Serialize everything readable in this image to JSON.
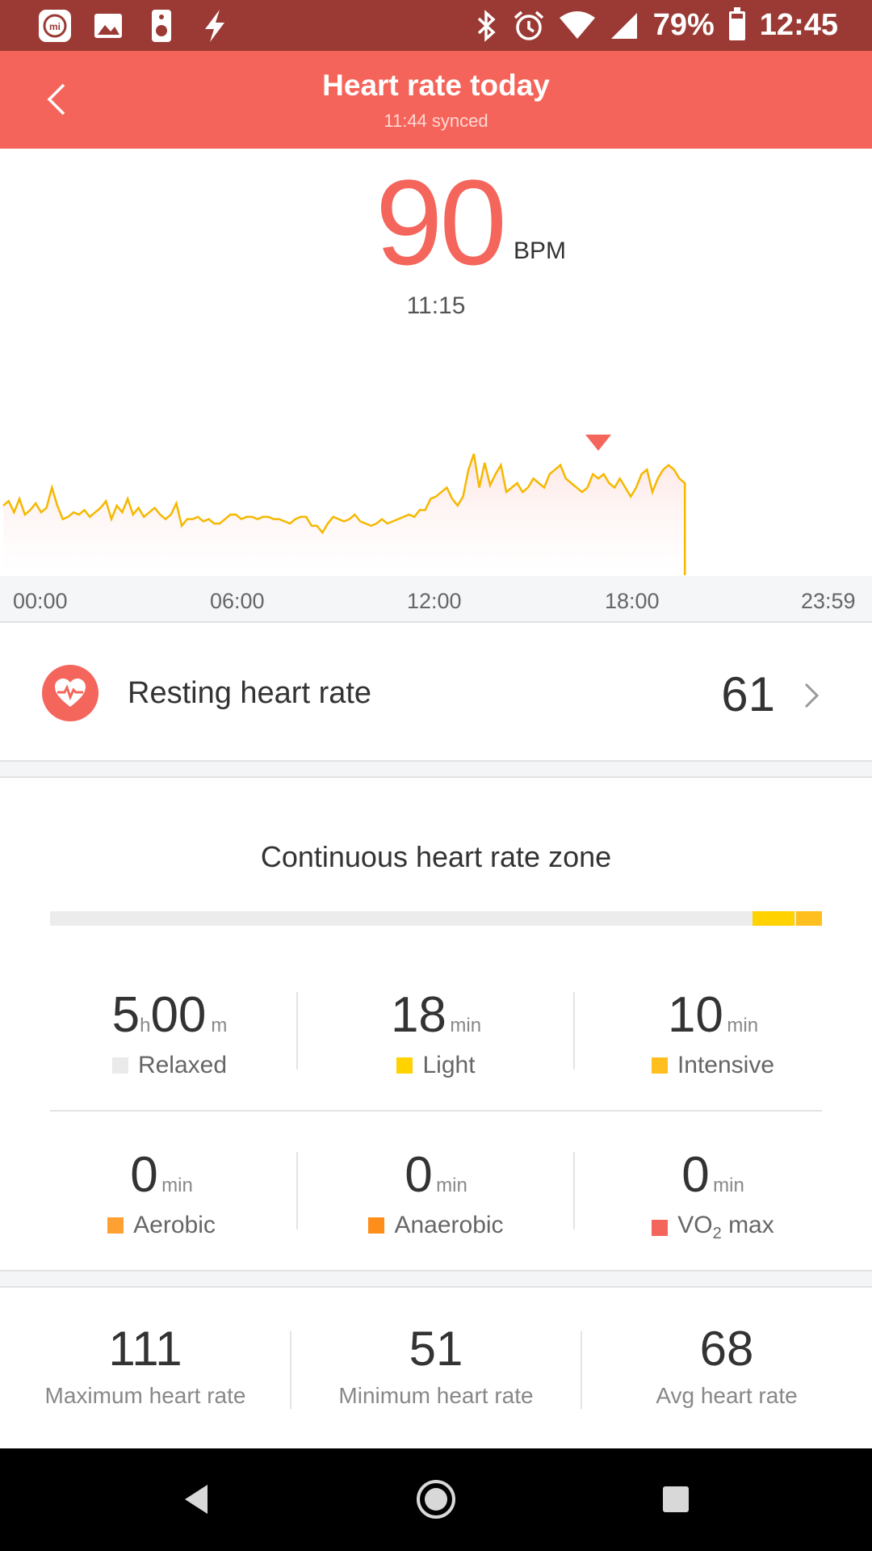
{
  "status_bar": {
    "battery": "79%",
    "battery_level": 0.79,
    "time": "12:45",
    "icons": [
      "mi-fit-icon",
      "image-icon",
      "speaker-icon",
      "flash-icon",
      "bluetooth-icon",
      "alarm-icon",
      "wifi-icon",
      "signal-icon",
      "battery-icon"
    ]
  },
  "header": {
    "title": "Heart rate today",
    "subtitle": "11:44 synced"
  },
  "current": {
    "value": "90",
    "unit": "BPM",
    "time": "11:15"
  },
  "chart_data": {
    "type": "line",
    "series": [
      {
        "values": [
          [
            0.0,
            72
          ],
          [
            0.15,
            74
          ],
          [
            0.3,
            69
          ],
          [
            0.45,
            75
          ],
          [
            0.6,
            68
          ],
          [
            0.75,
            70
          ],
          [
            0.9,
            73
          ],
          [
            1.05,
            69
          ],
          [
            1.2,
            71
          ],
          [
            1.35,
            80
          ],
          [
            1.5,
            72
          ],
          [
            1.65,
            66
          ],
          [
            1.8,
            67
          ],
          [
            1.95,
            69
          ],
          [
            2.1,
            68
          ],
          [
            2.25,
            70
          ],
          [
            2.4,
            67
          ],
          [
            2.55,
            69
          ],
          [
            2.7,
            71
          ],
          [
            2.85,
            74
          ],
          [
            3.0,
            66
          ],
          [
            3.15,
            72
          ],
          [
            3.3,
            69
          ],
          [
            3.45,
            75
          ],
          [
            3.6,
            68
          ],
          [
            3.75,
            71
          ],
          [
            3.9,
            67
          ],
          [
            4.05,
            69
          ],
          [
            4.2,
            71
          ],
          [
            4.35,
            68
          ],
          [
            4.5,
            66
          ],
          [
            4.65,
            68
          ],
          [
            4.8,
            73
          ],
          [
            4.95,
            63
          ],
          [
            5.1,
            66
          ],
          [
            5.25,
            66
          ],
          [
            5.4,
            67
          ],
          [
            5.55,
            65
          ],
          [
            5.7,
            66
          ],
          [
            5.85,
            64
          ],
          [
            6.0,
            64
          ],
          [
            6.15,
            66
          ],
          [
            6.3,
            68
          ],
          [
            6.45,
            68
          ],
          [
            6.6,
            66
          ],
          [
            6.75,
            67
          ],
          [
            6.9,
            67
          ],
          [
            7.05,
            66
          ],
          [
            7.2,
            67
          ],
          [
            7.35,
            67
          ],
          [
            7.5,
            66
          ],
          [
            7.65,
            66
          ],
          [
            7.8,
            65
          ],
          [
            7.95,
            64
          ],
          [
            8.1,
            66
          ],
          [
            8.25,
            67
          ],
          [
            8.4,
            67
          ],
          [
            8.55,
            63
          ],
          [
            8.7,
            63
          ],
          [
            8.85,
            60
          ],
          [
            9.0,
            64
          ],
          [
            9.15,
            67
          ],
          [
            9.3,
            66
          ],
          [
            9.45,
            65
          ],
          [
            9.6,
            66
          ],
          [
            9.75,
            68
          ],
          [
            9.9,
            65
          ],
          [
            10.05,
            64
          ],
          [
            10.2,
            63
          ],
          [
            10.35,
            64
          ],
          [
            10.5,
            66
          ],
          [
            10.65,
            64
          ],
          [
            10.8,
            65
          ],
          [
            10.95,
            66
          ],
          [
            11.1,
            67
          ],
          [
            11.25,
            68
          ],
          [
            11.4,
            67
          ],
          [
            11.55,
            70
          ],
          [
            11.7,
            70
          ],
          [
            11.85,
            75
          ],
          [
            12.0,
            76
          ],
          [
            12.15,
            78
          ],
          [
            12.3,
            80
          ],
          [
            12.45,
            75
          ],
          [
            12.6,
            72
          ],
          [
            12.75,
            76
          ],
          [
            12.9,
            88
          ],
          [
            13.05,
            95
          ],
          [
            13.2,
            80
          ],
          [
            13.35,
            91
          ],
          [
            13.5,
            81
          ],
          [
            13.65,
            86
          ],
          [
            13.8,
            90
          ],
          [
            13.95,
            78
          ],
          [
            14.1,
            80
          ],
          [
            14.25,
            82
          ],
          [
            14.4,
            78
          ],
          [
            14.55,
            80
          ],
          [
            14.7,
            84
          ],
          [
            14.85,
            82
          ],
          [
            15.0,
            80
          ],
          [
            15.15,
            86
          ],
          [
            15.3,
            88
          ],
          [
            15.45,
            90
          ],
          [
            15.6,
            84
          ],
          [
            15.75,
            82
          ],
          [
            15.9,
            80
          ],
          [
            16.05,
            78
          ],
          [
            16.2,
            80
          ],
          [
            16.35,
            86
          ],
          [
            16.5,
            84
          ],
          [
            16.65,
            86
          ],
          [
            16.8,
            82
          ],
          [
            16.95,
            80
          ],
          [
            17.1,
            84
          ],
          [
            17.25,
            80
          ],
          [
            17.4,
            76
          ],
          [
            17.55,
            80
          ],
          [
            17.7,
            86
          ],
          [
            17.85,
            88
          ],
          [
            18.0,
            78
          ],
          [
            18.15,
            84
          ],
          [
            18.3,
            88
          ],
          [
            18.45,
            90
          ],
          [
            18.6,
            88
          ],
          [
            18.75,
            84
          ],
          [
            18.9,
            82
          ]
        ]
      }
    ],
    "xlabels": [
      "00:00",
      "06:00",
      "12:00",
      "18:00",
      "23:59"
    ],
    "marker_x": 16.5
  },
  "resting": {
    "label": "Resting heart rate",
    "value": "61"
  },
  "zone": {
    "title": "Continuous heart rate zone",
    "cells": [
      {
        "label": "Relaxed",
        "color": "#eaeaea"
      },
      {
        "num": "18",
        "unit": "min",
        "label": "Light",
        "color": "#ffd200"
      },
      {
        "num": "10",
        "unit": "min",
        "label": "Intensive",
        "color": "#ffbf1f"
      },
      {
        "num": "0",
        "unit": "min",
        "label": "Aerobic",
        "color": "#ffa033"
      },
      {
        "num": "0",
        "unit": "min",
        "label": "Anaerobic",
        "color": "#ff8d19"
      },
      {
        "num": "0",
        "unit": "min",
        "label": "max",
        "label_prefix": "VO",
        "label_sub": "2",
        "color": "#f4655b"
      }
    ],
    "relaxed": {
      "h": "5",
      "h_unit": "h",
      "m": "00",
      "m_unit": "m"
    }
  },
  "stats": [
    {
      "value": "111",
      "label": "Maximum heart rate"
    },
    {
      "value": "51",
      "label": "Minimum heart rate"
    },
    {
      "value": "68",
      "label": "Avg heart rate"
    }
  ],
  "colors": {
    "accent": "#f4655b",
    "header": "#f5645a",
    "status_bar": "#9b3a34",
    "line": "#f5b800"
  }
}
